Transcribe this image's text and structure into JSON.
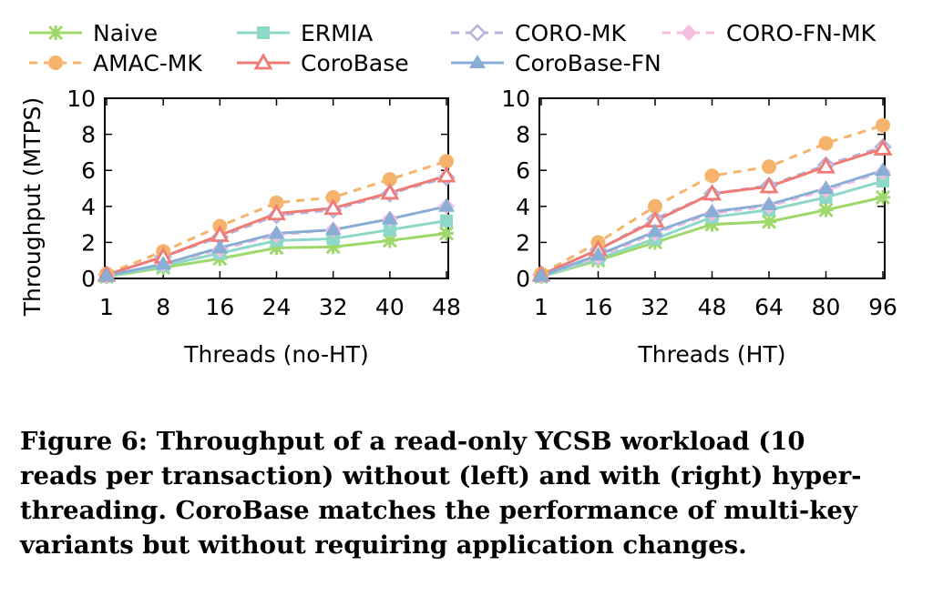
{
  "legend": {
    "rows": [
      [
        "Naive",
        "ERMIA",
        "CORO-MK",
        "CORO-FN-MK"
      ],
      [
        "AMAC-MK",
        "CoroBase",
        "CoroBase-FN"
      ]
    ]
  },
  "styles": {
    "Naive": {
      "color": "#9fd86a",
      "marker": "star",
      "dash": "solid"
    },
    "ERMIA": {
      "color": "#8dd8c8",
      "marker": "square",
      "dash": "solid"
    },
    "CORO-MK": {
      "color": "#b3b3dc",
      "marker": "diamond",
      "dash": "dashed"
    },
    "CORO-FN-MK": {
      "color": "#f5bde0",
      "marker": "diamondF",
      "dash": "dashed"
    },
    "AMAC-MK": {
      "color": "#f5b36b",
      "marker": "circle",
      "dash": "dashed"
    },
    "CoroBase": {
      "color": "#f07a74",
      "marker": "triangle",
      "dash": "solid"
    },
    "CoroBase-FN": {
      "color": "#89aed6",
      "marker": "triangleF",
      "dash": "solid"
    }
  },
  "chart_data": [
    {
      "type": "line",
      "ylabel": "Throughput (MTPS)",
      "xlabel": "Threads (no-HT)",
      "categories": [
        "1",
        "8",
        "16",
        "24",
        "32",
        "40",
        "48"
      ],
      "ylim": [
        0,
        10
      ],
      "yticks": [
        "0",
        "2",
        "4",
        "6",
        "8",
        "10"
      ],
      "series": [
        {
          "name": "Naive",
          "values": [
            0.1,
            0.6,
            1.1,
            1.7,
            1.75,
            2.1,
            2.5
          ]
        },
        {
          "name": "ERMIA",
          "values": [
            0.1,
            0.7,
            1.4,
            2.1,
            2.2,
            2.7,
            3.2
          ]
        },
        {
          "name": "CORO-MK",
          "values": [
            0.2,
            1.2,
            2.3,
            3.5,
            3.8,
            4.7,
            5.6
          ]
        },
        {
          "name": "CORO-FN-MK",
          "values": [
            0.15,
            0.8,
            1.6,
            2.4,
            2.7,
            3.3,
            4.0
          ]
        },
        {
          "name": "AMAC-MK",
          "values": [
            0.25,
            1.5,
            2.9,
            4.2,
            4.5,
            5.5,
            6.5
          ]
        },
        {
          "name": "CoroBase",
          "values": [
            0.2,
            1.2,
            2.4,
            3.6,
            3.9,
            4.75,
            5.7
          ]
        },
        {
          "name": "CoroBase-FN",
          "values": [
            0.15,
            0.8,
            1.7,
            2.5,
            2.7,
            3.3,
            4.0
          ]
        }
      ]
    },
    {
      "type": "line",
      "xlabel": "Threads (HT)",
      "categories": [
        "1",
        "16",
        "32",
        "48",
        "64",
        "80",
        "96"
      ],
      "ylim": [
        0,
        10
      ],
      "yticks": [
        "0",
        "2",
        "4",
        "6",
        "8",
        "10"
      ],
      "series": [
        {
          "name": "Naive",
          "values": [
            0.1,
            1.0,
            2.0,
            3.0,
            3.15,
            3.8,
            4.5
          ]
        },
        {
          "name": "ERMIA",
          "values": [
            0.1,
            1.1,
            2.2,
            3.4,
            3.8,
            4.5,
            5.4
          ]
        },
        {
          "name": "CORO-MK",
          "values": [
            0.2,
            1.6,
            3.3,
            4.7,
            5.15,
            6.3,
            7.3
          ]
        },
        {
          "name": "CORO-FN-MK",
          "values": [
            0.15,
            1.2,
            2.5,
            3.6,
            4.0,
            4.9,
            5.9
          ]
        },
        {
          "name": "AMAC-MK",
          "values": [
            0.25,
            2.0,
            4.0,
            5.7,
            6.2,
            7.5,
            8.5
          ]
        },
        {
          "name": "CoroBase",
          "values": [
            0.2,
            1.6,
            3.2,
            4.7,
            5.1,
            6.2,
            7.2
          ]
        },
        {
          "name": "CoroBase-FN",
          "values": [
            0.15,
            1.3,
            2.6,
            3.7,
            4.1,
            5.0,
            6.0
          ]
        }
      ]
    }
  ],
  "caption": {
    "lines": [
      "Figure 6: Throughput of a read-only YCSB workload (10",
      "reads per transaction) without (left) and with (right) hyper-",
      "threading. CoroBase matches the performance of multi-key",
      "variants but without requiring application changes."
    ]
  }
}
